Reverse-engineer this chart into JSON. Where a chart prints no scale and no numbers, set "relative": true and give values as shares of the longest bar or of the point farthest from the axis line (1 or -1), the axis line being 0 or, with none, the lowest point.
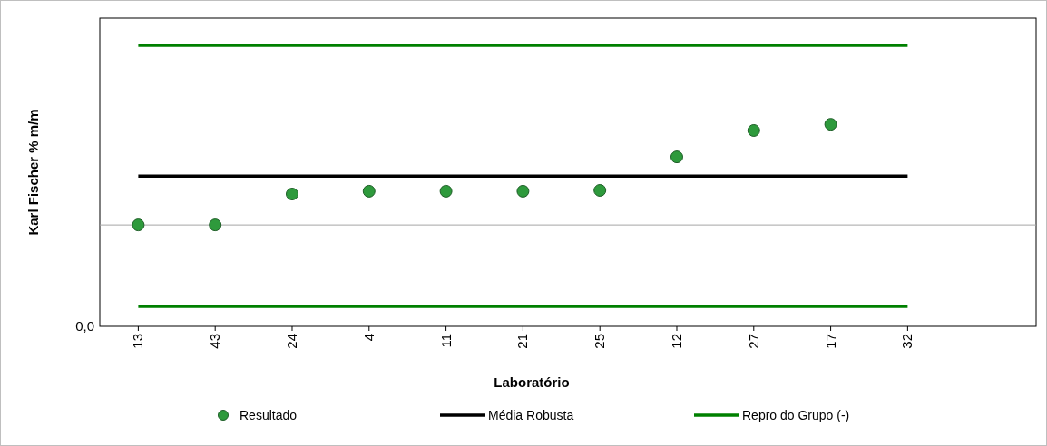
{
  "chart_data": {
    "type": "scatter",
    "relative": true,
    "xlabel": "Laboratório",
    "ylabel": "Karl Fischer % m/m",
    "categories": [
      "13",
      "43",
      "24",
      "4",
      "11",
      "21",
      "25",
      "12",
      "27",
      "17",
      "32"
    ],
    "series": [
      {
        "name": "Resultado",
        "type": "scatter",
        "color": "#2e9a3c",
        "marker": "circle",
        "values": [
          0.361,
          0.361,
          0.471,
          0.481,
          0.481,
          0.481,
          0.484,
          0.603,
          0.697,
          0.719,
          null
        ]
      },
      {
        "name": "Média Robusta",
        "type": "line",
        "color": "#000000",
        "marker": "none",
        "values": [
          0.535,
          0.535,
          0.535,
          0.535,
          0.535,
          0.535,
          0.535,
          0.535,
          0.535,
          0.535,
          0.535
        ]
      },
      {
        "name": "Repro do Grupo (-)",
        "type": "line",
        "color": "#008000",
        "marker": "none",
        "values": [
          1,
          1,
          1,
          1,
          1,
          1,
          1,
          1,
          1,
          1,
          1
        ]
      },
      {
        "type": "line",
        "color": "#008000",
        "marker": "none",
        "values": [
          0.071,
          0.071,
          0.071,
          0.071,
          0.071,
          0.071,
          0.071,
          0.071,
          0.071,
          0.071,
          0.071
        ]
      }
    ],
    "ref_lines": [
      {
        "axis": "y",
        "value": 0.361,
        "color": "#a6a6a6"
      }
    ],
    "annotations": [
      "0,0"
    ],
    "legend": "bottom"
  }
}
